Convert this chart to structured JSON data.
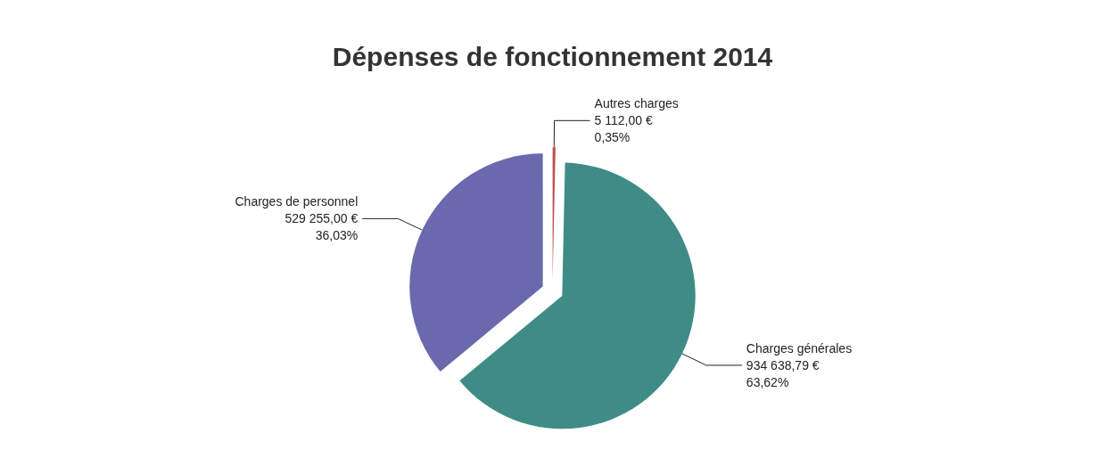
{
  "chart_data": {
    "type": "pie",
    "title": "Dépenses de fonctionnement 2014",
    "categories": [
      "Autres charges",
      "Charges générales",
      "Charges de personnel"
    ],
    "values": [
      5112.0,
      934638.79,
      529255.0
    ],
    "colors": [
      "#c0504d",
      "#3f8c87",
      "#6a69ad"
    ],
    "value_labels": [
      "5 112,00 €\n0,35%",
      "934 638,79 €\n63,62%",
      "529 255,00 €\n36,03%"
    ],
    "legend": false
  }
}
